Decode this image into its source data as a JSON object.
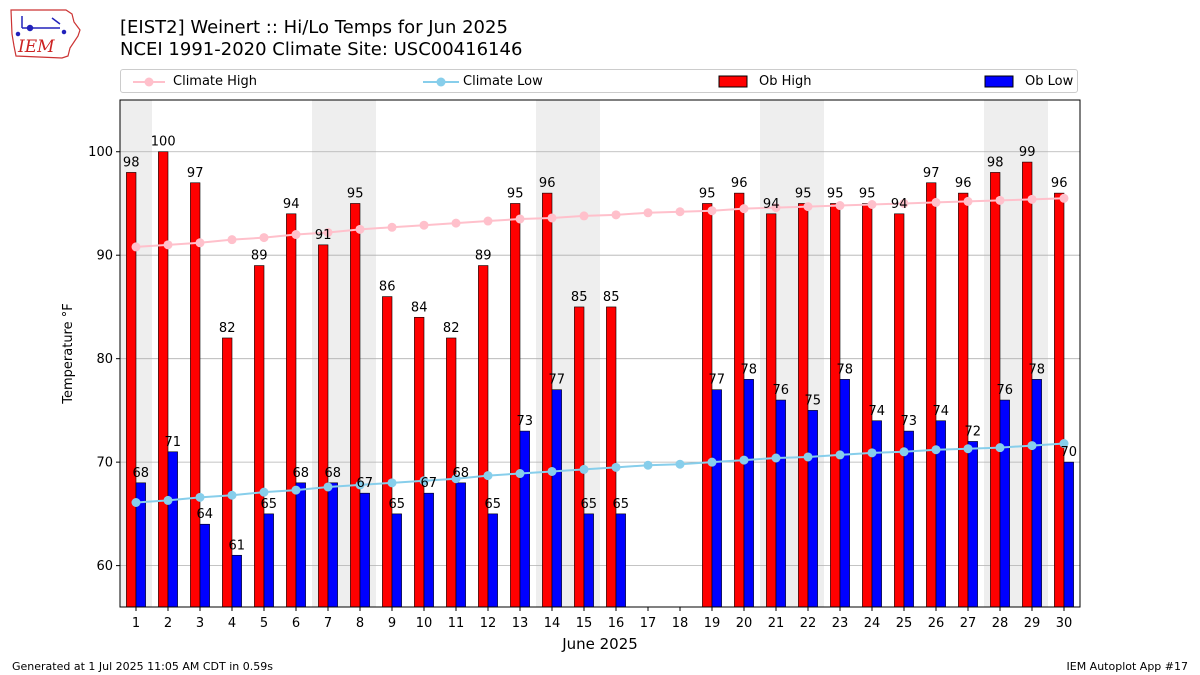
{
  "logo": {
    "text": "IEM"
  },
  "title": {
    "line1": "[EIST2] Weinert :: Hi/Lo Temps for Jun 2025",
    "line2": "NCEI 1991-2020 Climate Site: USC00416146"
  },
  "legend": {
    "climate_high": "Climate High",
    "climate_low": "Climate Low",
    "ob_high": "Ob High",
    "ob_low": "Ob Low"
  },
  "footer": {
    "left": "Generated at 1 Jul 2025 11:05 AM CDT in 0.59s",
    "right": "IEM Autoplot App #17"
  },
  "colors": {
    "ob_high": "#ff0000",
    "ob_low": "#0000ff",
    "climate_high": "#ffc0cb",
    "climate_low": "#87ceeb",
    "weekend_shade": "#eeeeee",
    "grid": "#b0b0b0"
  },
  "chart_data": {
    "type": "bar",
    "xlabel": "June 2025",
    "ylabel": "Temperature °F",
    "ylim": [
      56,
      105
    ],
    "yticks": [
      60,
      70,
      80,
      90,
      100
    ],
    "grid": "horizontal",
    "legend_position": "top",
    "days": [
      1,
      2,
      3,
      4,
      5,
      6,
      7,
      8,
      9,
      10,
      11,
      12,
      13,
      14,
      15,
      16,
      17,
      18,
      19,
      20,
      21,
      22,
      23,
      24,
      25,
      26,
      27,
      28,
      29,
      30
    ],
    "weekend_days": [
      1,
      7,
      8,
      14,
      15,
      21,
      22,
      28,
      29
    ],
    "series": [
      {
        "name": "Ob High",
        "kind": "bar",
        "values": [
          98,
          100,
          97,
          82,
          89,
          94,
          91,
          95,
          86,
          84,
          82,
          89,
          95,
          96,
          85,
          85,
          null,
          null,
          95,
          96,
          94,
          95,
          95,
          95,
          94,
          97,
          96,
          98,
          99,
          96
        ]
      },
      {
        "name": "Ob Low",
        "kind": "bar",
        "values": [
          68,
          71,
          64,
          61,
          65,
          68,
          68,
          67,
          65,
          67,
          68,
          65,
          73,
          77,
          65,
          65,
          null,
          null,
          77,
          78,
          76,
          75,
          78,
          74,
          73,
          74,
          72,
          76,
          78,
          70
        ]
      },
      {
        "name": "Climate High",
        "kind": "line",
        "values": [
          90.8,
          91.0,
          91.2,
          91.5,
          91.7,
          92.0,
          92.2,
          92.5,
          92.7,
          92.9,
          93.1,
          93.3,
          93.5,
          93.6,
          93.8,
          93.9,
          94.1,
          94.2,
          94.3,
          94.5,
          94.6,
          94.7,
          94.8,
          94.9,
          95.0,
          95.1,
          95.2,
          95.3,
          95.4,
          95.5
        ]
      },
      {
        "name": "Climate Low",
        "kind": "line",
        "values": [
          66.1,
          66.3,
          66.6,
          66.8,
          67.1,
          67.3,
          67.6,
          67.8,
          68.0,
          68.2,
          68.4,
          68.7,
          68.9,
          69.1,
          69.3,
          69.5,
          69.7,
          69.8,
          70.0,
          70.2,
          70.4,
          70.5,
          70.7,
          70.9,
          71.0,
          71.2,
          71.3,
          71.4,
          71.6,
          71.8
        ]
      }
    ]
  }
}
